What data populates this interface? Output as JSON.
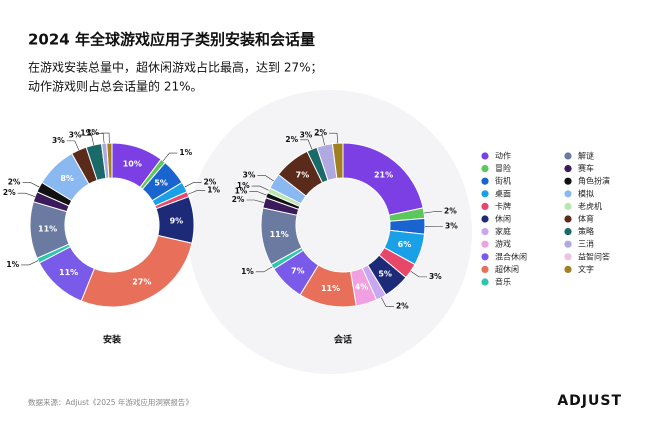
{
  "header": {
    "title": "2024 年全球游戏应用子类别安装和会话量",
    "subtitle": [
      "在游戏安装总量中，超休闲游戏占比最高，达到 27%；",
      "动作游戏则占总会话量的 21%。"
    ]
  },
  "legend": {
    "items": [
      {
        "name": "动作",
        "color": "#7b3fe4"
      },
      {
        "name": "冒险",
        "color": "#5cc85c"
      },
      {
        "name": "街机",
        "color": "#1a64d0"
      },
      {
        "name": "桌面",
        "color": "#1aa0e6"
      },
      {
        "name": "卡牌",
        "color": "#e8476a"
      },
      {
        "name": "休闲",
        "color": "#1c2a78"
      },
      {
        "name": "家庭",
        "color": "#c9a6f0"
      },
      {
        "name": "游戏",
        "color": "#f0a0e0"
      },
      {
        "name": "混合休闲",
        "color": "#7a5ae8"
      },
      {
        "name": "超休闲",
        "color": "#e8705a"
      },
      {
        "name": "音乐",
        "color": "#2fc6b0"
      },
      {
        "name": "解谜",
        "color": "#6a7aa0"
      },
      {
        "name": "赛车",
        "color": "#3a1a5a"
      },
      {
        "name": "角色扮演",
        "color": "#111111"
      },
      {
        "name": "模拟",
        "color": "#8ab8f0"
      },
      {
        "name": "老虎机",
        "color": "#b8e8b0"
      },
      {
        "name": "体育",
        "color": "#5a2a1a"
      },
      {
        "name": "策略",
        "color": "#1a6a6a"
      },
      {
        "name": "三消",
        "color": "#b0a8e0"
      },
      {
        "name": "益智问答",
        "color": "#f0c0e0"
      },
      {
        "name": "文字",
        "color": "#a08020"
      }
    ]
  },
  "chart_data": [
    {
      "type": "pie",
      "title": "安装",
      "categories": [
        "动作",
        "冒险",
        "街机",
        "桌面",
        "卡牌",
        "休闲",
        "超休闲",
        "混合休闲",
        "音乐",
        "解谜",
        "赛车",
        "角色扮演",
        "模拟",
        "体育",
        "策略",
        "三消",
        "文字"
      ],
      "values": [
        10,
        1,
        5,
        2,
        1,
        9,
        27,
        11,
        1,
        11,
        2,
        2,
        8,
        3,
        3,
        1,
        1
      ],
      "value_labels": [
        "10%",
        "1%",
        "5%",
        "2%",
        "1%",
        "9%",
        "27%",
        "11%",
        "1%",
        "11%",
        "2%",
        "2%",
        "8%",
        "3%",
        "3%",
        "1%",
        "1%"
      ]
    },
    {
      "type": "pie",
      "title": "会话",
      "categories": [
        "动作",
        "冒险",
        "街机",
        "桌面",
        "卡牌",
        "休闲",
        "家庭",
        "游戏",
        "超休闲",
        "混合休闲",
        "音乐",
        "解谜",
        "赛车",
        "角色扮演",
        "老虎机",
        "模拟",
        "体育",
        "策略",
        "三消",
        "文字"
      ],
      "values": [
        21,
        2,
        3,
        6,
        3,
        5,
        2,
        4,
        11,
        7,
        1,
        11,
        2,
        1,
        1,
        3,
        7,
        2,
        3,
        2
      ],
      "value_labels": [
        "21%",
        "2%",
        "3%",
        "6%",
        "3%",
        "5%",
        "2%",
        "4%",
        "11%",
        "7%",
        "1%",
        "11%",
        "2%",
        "1%",
        "1%",
        "3%",
        "7%",
        "2%",
        "3%",
        "2%"
      ]
    }
  ],
  "footer": {
    "source": "数据来源：Adjust《2025 年游戏应用洞察报告》",
    "logo": "ADJUST"
  }
}
